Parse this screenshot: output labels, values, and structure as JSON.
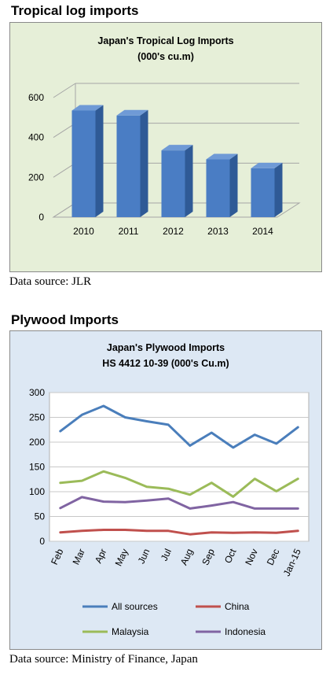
{
  "sections": {
    "log": {
      "heading": "Tropical log imports",
      "source": "Data source: JLR"
    },
    "plywood": {
      "heading": "Plywood Imports",
      "source": "Data source: Ministry of Finance, Japan"
    }
  },
  "chart_data": [
    {
      "type": "bar",
      "title": "Japan's Tropical Log Imports",
      "subtitle": "(000's cu.m)",
      "categories": [
        "2010",
        "2011",
        "2012",
        "2013",
        "2014"
      ],
      "values": [
        535,
        510,
        335,
        290,
        245
      ],
      "yticks": [
        0,
        200,
        400,
        600
      ],
      "ylim": [
        0,
        600
      ],
      "grid": true,
      "colors": {
        "bar": "#4a7dc4",
        "bar_side": "#2f5a96",
        "bar_top": "#6f9ad6"
      }
    },
    {
      "type": "line",
      "title": "Japan's Plywood Imports",
      "subtitle": "HS 4412 10-39  (000's Cu.m)",
      "categories": [
        "Feb",
        "Mar",
        "Apr",
        "May",
        "Jun",
        "Jul",
        "Aug",
        "Sep",
        "Oct",
        "Nov",
        "Dec",
        "Jan-15"
      ],
      "yticks": [
        0,
        50,
        100,
        150,
        200,
        250,
        300
      ],
      "ylim": [
        0,
        300
      ],
      "grid": true,
      "legend_position": "bottom",
      "series": [
        {
          "name": "All sources",
          "color": "#4a7ebb",
          "values": [
            222,
            255,
            273,
            250,
            242,
            235,
            193,
            219,
            189,
            215,
            197,
            230
          ]
        },
        {
          "name": "China",
          "color": "#c0504d",
          "values": [
            18,
            21,
            23,
            23,
            21,
            21,
            14,
            18,
            17,
            18,
            17,
            21
          ]
        },
        {
          "name": "Malaysia",
          "color": "#9bbb59",
          "values": [
            118,
            122,
            141,
            128,
            110,
            106,
            94,
            118,
            90,
            126,
            101,
            126
          ]
        },
        {
          "name": "Indonesia",
          "color": "#8064a2",
          "values": [
            67,
            89,
            80,
            79,
            82,
            86,
            66,
            72,
            79,
            66,
            66,
            66
          ]
        }
      ]
    }
  ]
}
